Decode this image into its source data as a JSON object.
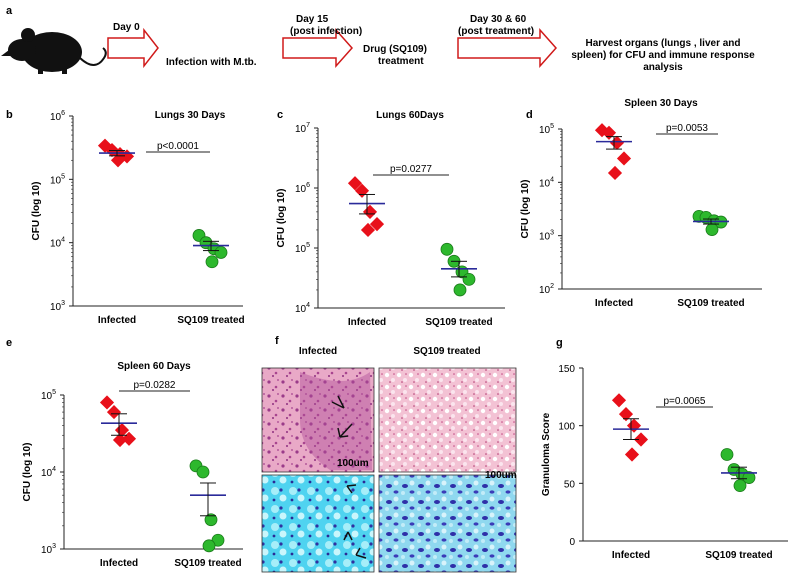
{
  "workflow": {
    "label": "a",
    "steps": [
      "Day 0",
      "Infection with M.tb.",
      "Day 15",
      "(post infection)",
      "Drug (SQ109)",
      "treatment",
      "Day 30 & 60",
      "(post treatment)",
      "Harvest organs (lungs , liver and",
      "spleen) for CFU and immune response",
      "analysis"
    ]
  },
  "histology": {
    "label": "f",
    "col_infected": "Infected",
    "col_treated": "SQ109 treated",
    "scale_1": "100um",
    "scale_2": "100um"
  },
  "colors": {
    "infected": "#e8101a",
    "treated": "#2db82d",
    "treated_edge": "#1a7a1a",
    "mean_line": "#2a2a9a",
    "arrow": "#c0282e"
  },
  "chart_data": [
    {
      "label": "b",
      "type": "scatter",
      "title": "Lungs  30 Days",
      "ylabel": "CFU (log 10)",
      "scale": "log",
      "ylim": [
        1000,
        1000000
      ],
      "yticks": [
        "10",
        "10",
        "10",
        "10"
      ],
      "yexp": [
        "3",
        "4",
        "5",
        "6"
      ],
      "categories": [
        "Infected",
        "SQ109 treated"
      ],
      "series": [
        {
          "name": "Infected",
          "values": [
            340000,
            290000,
            250000,
            230000,
            200000
          ],
          "mean": 260000,
          "sem_low": 235000,
          "sem_high": 285000
        },
        {
          "name": "SQ109 treated",
          "values": [
            13000,
            10000,
            8000,
            7000,
            5000
          ],
          "mean": 9000,
          "sem_low": 7500,
          "sem_high": 10500
        }
      ],
      "pvalue": "p<0.0001"
    },
    {
      "label": "c",
      "type": "scatter",
      "title": "Lungs  60Days",
      "ylabel": "CFU (log 10)",
      "scale": "log",
      "ylim": [
        10000,
        10000000
      ],
      "yticks": [
        "10",
        "10",
        "10",
        "10"
      ],
      "yexp": [
        "4",
        "5",
        "6",
        "7"
      ],
      "categories": [
        "Infected",
        "SQ109 treated"
      ],
      "series": [
        {
          "name": "Infected",
          "values": [
            1200000,
            900000,
            400000,
            250000,
            200000
          ],
          "mean": 550000,
          "sem_low": 370000,
          "sem_high": 780000
        },
        {
          "name": "SQ109 treated",
          "values": [
            95000,
            60000,
            40000,
            30000,
            20000
          ],
          "mean": 45000,
          "sem_low": 33000,
          "sem_high": 60000
        }
      ],
      "pvalue": "p=0.0277"
    },
    {
      "label": "d",
      "type": "scatter",
      "title": "Spleen 30 Days",
      "ylabel": "CFU (log 10)",
      "scale": "log",
      "ylim": [
        100,
        100000
      ],
      "yticks": [
        "10",
        "10",
        "10",
        "10"
      ],
      "yexp": [
        "2",
        "3",
        "4",
        "5"
      ],
      "categories": [
        "Infected",
        "SQ109 treated"
      ],
      "series": [
        {
          "name": "Infected",
          "values": [
            95000,
            85000,
            55000,
            28000,
            15000
          ],
          "mean": 58000,
          "sem_low": 42000,
          "sem_high": 72000
        },
        {
          "name": "SQ109 treated",
          "values": [
            2300,
            2200,
            1900,
            1800,
            1300
          ],
          "mean": 1850,
          "sem_low": 1650,
          "sem_high": 2050
        }
      ],
      "pvalue": "p=0.0053"
    },
    {
      "label": "e",
      "type": "scatter",
      "title": "Spleen  60 Days",
      "ylabel": "CFU (log 10)",
      "scale": "log",
      "ylim": [
        1000,
        100000
      ],
      "yticks": [
        "10",
        "10",
        "10"
      ],
      "yexp": [
        "3",
        "4",
        "5"
      ],
      "categories": [
        "Infected",
        "SQ109 treated"
      ],
      "series": [
        {
          "name": "Infected",
          "values": [
            80000,
            60000,
            35000,
            27000,
            26000
          ],
          "mean": 43000,
          "sem_low": 30000,
          "sem_high": 57000
        },
        {
          "name": "SQ109 treated",
          "values": [
            12000,
            10000,
            2400,
            1300,
            1100
          ],
          "mean": 5000,
          "sem_low": 2700,
          "sem_high": 7200
        }
      ],
      "pvalue": "p=0.0282"
    },
    {
      "label": "g",
      "type": "scatter",
      "title": "",
      "ylabel": "Granuloma Score",
      "scale": "linear",
      "ylim": [
        0,
        150
      ],
      "yticks": [
        "0",
        "50",
        "100",
        "150"
      ],
      "yexp": [
        "",
        "",
        "",
        ""
      ],
      "categories": [
        "Infected",
        "SQ109 treated"
      ],
      "series": [
        {
          "name": "Infected",
          "values": [
            122,
            110,
            100,
            88,
            75
          ],
          "mean": 97,
          "sem_low": 88,
          "sem_high": 106
        },
        {
          "name": "SQ109 treated",
          "values": [
            75,
            62,
            58,
            55,
            48
          ],
          "mean": 59,
          "sem_low": 54,
          "sem_high": 64
        }
      ],
      "pvalue": "p=0.0065"
    }
  ]
}
